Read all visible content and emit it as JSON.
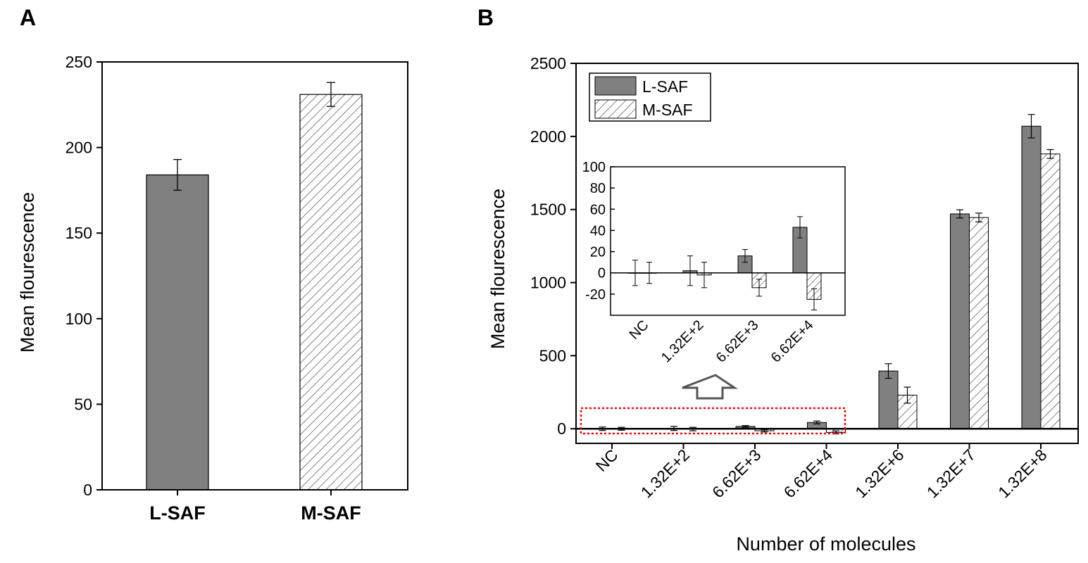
{
  "colors": {
    "bar_fill": "#808080",
    "hatch": "#333333",
    "highlight": "#ff0000",
    "arrow": "#555555"
  },
  "chart_data": [
    {
      "panel": "A",
      "type": "bar",
      "title": "",
      "xlabel": "",
      "ylabel": "Mean flourescence",
      "ylim": [
        0,
        250
      ],
      "yticks": [
        "0",
        "50",
        "100",
        "150",
        "200",
        "250"
      ],
      "categories": [
        "L-SAF",
        "M-SAF"
      ],
      "values": [
        184,
        231
      ],
      "errors": [
        9,
        7
      ],
      "styles": [
        "solid",
        "hatched"
      ]
    },
    {
      "panel": "B",
      "type": "bar",
      "title": "",
      "xlabel": "Number of molecules",
      "ylabel": "Mean flourescence",
      "ylim": [
        -100,
        2500
      ],
      "yticks": [
        "0",
        "500",
        "1000",
        "1500",
        "2000",
        "2500"
      ],
      "categories": [
        "NC",
        "1.32E+2",
        "6.62E+3",
        "6.62E+4",
        "1.32E+6",
        "1.32E+7",
        "1.32E+8"
      ],
      "legend": {
        "position": "top-left",
        "entries": [
          "L-SAF",
          "M-SAF"
        ]
      },
      "series": [
        {
          "name": "L-SAF",
          "style": "solid",
          "values": [
            0,
            2,
            16,
            43,
            395,
            1470,
            2070
          ],
          "errors": [
            12,
            14,
            6,
            10,
            50,
            28,
            80
          ]
        },
        {
          "name": "M-SAF",
          "style": "hatched",
          "values": [
            0,
            -2,
            -14,
            -25,
            230,
            1445,
            1880
          ],
          "errors": [
            10,
            12,
            8,
            10,
            55,
            30,
            30
          ]
        }
      ],
      "inset": {
        "ylim": [
          -40,
          100
        ],
        "yticks": [
          "-20",
          "0",
          "20",
          "40",
          "60",
          "80",
          "100"
        ],
        "categories": [
          "NC",
          "1.32E+2",
          "6.62E+3",
          "6.62E+4"
        ],
        "series": [
          {
            "name": "L-SAF",
            "values": [
              0,
              2,
              16,
              43
            ],
            "errors": [
              12,
              14,
              6,
              10
            ]
          },
          {
            "name": "M-SAF",
            "values": [
              0,
              -2,
              -14,
              -25
            ],
            "errors": [
              10,
              12,
              8,
              10
            ]
          }
        ]
      }
    }
  ]
}
